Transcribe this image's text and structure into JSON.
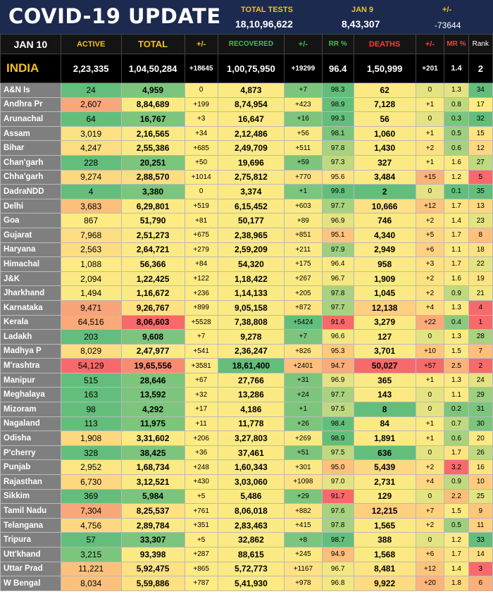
{
  "header": {
    "title": "COVID-19 UPDATE",
    "total_tests_label": "TOTAL TESTS",
    "total_tests_value": "18,10,96,622",
    "date_label": "JAN 9",
    "date_value": "8,43,307",
    "change_label": "+/-",
    "change_value": "-73644"
  },
  "columns": {
    "date": "JAN 10",
    "active": "ACTIVE",
    "total": "TOTAL",
    "pm1": "+/-",
    "recovered": "RECOVERED",
    "pm2": "+/-",
    "rr": "RR %",
    "deaths": "DEATHS",
    "pm3": "+/-",
    "mr": "MR %",
    "rank": "Rank"
  },
  "india": {
    "name": "INDIA",
    "active": "2,23,335",
    "total": "1,04,50,284",
    "pm1": "+18645",
    "recovered": "1,00,75,950",
    "pm2": "+19299",
    "rr": "96.4",
    "deaths": "1,50,999",
    "pm3": "+201",
    "mr": "1.4",
    "rank": "2"
  },
  "colors": {
    "header_bg": "#1c2a4f",
    "accent_yellow": "#f1c21b",
    "recovered_label": "#3fbf4f",
    "deaths_label": "#ff3b3b",
    "state_name_bg": "#7f7f7f"
  },
  "states": [
    {
      "name": "A&N Is",
      "active": "24",
      "total": "4,959",
      "pm1": "0",
      "recovered": "4,873",
      "pm2": "+7",
      "rr": "98.3",
      "deaths": "62",
      "pm3": "0",
      "mr": "1.3",
      "rank": "34",
      "c": [
        "#63be7b",
        "#63be7b",
        "#7cc57d",
        "#ffeb84",
        "#fbea84",
        "#7cc57d",
        "#63be7b",
        "#fbea84",
        "#e4e383",
        "#e4e383",
        "#63be7b"
      ]
    },
    {
      "name": "Andhra Pr",
      "active": "2,607",
      "total": "8,84,689",
      "pm1": "+199",
      "recovered": "8,74,954",
      "pm2": "+423",
      "rr": "98.9",
      "deaths": "7,128",
      "pm3": "+1",
      "mr": "0.8",
      "rank": "17",
      "c": [
        "#fbe983",
        "#f8a77a",
        "#fbea84",
        "#ffeb84",
        "#fbea84",
        "#fbea84",
        "#63be7b",
        "#fbea84",
        "#fbea84",
        "#bfd980",
        "#ffeb84"
      ]
    },
    {
      "name": "Arunachal",
      "active": "64",
      "total": "16,767",
      "pm1": "+3",
      "recovered": "16,647",
      "pm2": "+16",
      "rr": "99.3",
      "deaths": "56",
      "pm3": "0",
      "mr": "0.3",
      "rank": "32",
      "c": [
        "#63be7b",
        "#63be7b",
        "#7cc57d",
        "#ffeb84",
        "#fbea84",
        "#7cc57d",
        "#63be7b",
        "#fbea84",
        "#e4e383",
        "#7cc57d",
        "#63be7b"
      ]
    },
    {
      "name": "Assam",
      "active": "3,019",
      "total": "2,16,565",
      "pm1": "+34",
      "recovered": "2,12,486",
      "pm2": "+56",
      "rr": "98.1",
      "deaths": "1,060",
      "pm3": "+1",
      "mr": "0.5",
      "rank": "15",
      "c": [
        "#fbe983",
        "#fde183",
        "#fbea84",
        "#ffeb84",
        "#fbea84",
        "#fbea84",
        "#7cc57d",
        "#fbea84",
        "#fbea84",
        "#9dcf7f",
        "#fee382"
      ]
    },
    {
      "name": "Bihar",
      "active": "4,247",
      "total": "2,55,386",
      "pm1": "+685",
      "recovered": "2,49,709",
      "pm2": "+511",
      "rr": "97.8",
      "deaths": "1,430",
      "pm3": "+2",
      "mr": "0.6",
      "rank": "12",
      "c": [
        "#fbe983",
        "#fddd82",
        "#fbea84",
        "#ffeb84",
        "#fbea84",
        "#fbea84",
        "#a8d27f",
        "#fbea84",
        "#fee182",
        "#a8d27f",
        "#fed881"
      ]
    },
    {
      "name": "Chan'garh",
      "active": "228",
      "total": "20,251",
      "pm1": "+50",
      "recovered": "19,696",
      "pm2": "+59",
      "rr": "97.3",
      "deaths": "327",
      "pm3": "+1",
      "mr": "1.6",
      "rank": "27",
      "c": [
        "#63be7b",
        "#63be7b",
        "#7cc57d",
        "#ffeb84",
        "#fbea84",
        "#7cc57d",
        "#bfd980",
        "#fbea84",
        "#fbea84",
        "#fbea84",
        "#bfd980"
      ]
    },
    {
      "name": "Chha'garh",
      "active": "9,274",
      "total": "2,88,570",
      "pm1": "+1014",
      "recovered": "2,75,812",
      "pm2": "+770",
      "rr": "95.6",
      "deaths": "3,484",
      "pm3": "+15",
      "mr": "1.2",
      "rank": "5",
      "c": [
        "#fed581",
        "#fdd881",
        "#fedd82",
        "#ffeb84",
        "#fbea84",
        "#fde183",
        "#fee382",
        "#fbea84",
        "#fdb27a",
        "#fbea84",
        "#f8696b"
      ]
    },
    {
      "name": "DadraNDD",
      "active": "4",
      "total": "3,380",
      "pm1": "0",
      "recovered": "3,374",
      "pm2": "+1",
      "rr": "99.8",
      "deaths": "2",
      "pm3": "0",
      "mr": "0.1",
      "rank": "35",
      "c": [
        "#63be7b",
        "#63be7b",
        "#7cc57d",
        "#ffeb84",
        "#fbea84",
        "#7cc57d",
        "#63be7b",
        "#63be7b",
        "#e4e383",
        "#63be7b",
        "#63be7b"
      ]
    },
    {
      "name": "Delhi",
      "active": "3,683",
      "total": "6,29,801",
      "pm1": "+519",
      "recovered": "6,15,452",
      "pm2": "+603",
      "rr": "97.7",
      "deaths": "10,666",
      "pm3": "+12",
      "mr": "1.7",
      "rank": "13",
      "c": [
        "#fbe983",
        "#fcbf7b",
        "#fbea84",
        "#ffeb84",
        "#fbea84",
        "#fbea84",
        "#a8d27f",
        "#fde183",
        "#fdc47d",
        "#fee382",
        "#fed881"
      ]
    },
    {
      "name": "Goa",
      "active": "867",
      "total": "51,790",
      "pm1": "+81",
      "recovered": "50,177",
      "pm2": "+89",
      "rr": "96.9",
      "deaths": "746",
      "pm3": "+2",
      "mr": "1.4",
      "rank": "23",
      "c": [
        "#ffeb84",
        "#ffeb84",
        "#ffeb84",
        "#ffeb84",
        "#fbea84",
        "#fbea84",
        "#e4e383",
        "#fbea84",
        "#fee182",
        "#fbea84",
        "#e4e383"
      ]
    },
    {
      "name": "Gujarat",
      "active": "7,968",
      "total": "2,51,273",
      "pm1": "+675",
      "recovered": "2,38,965",
      "pm2": "+851",
      "rr": "95.1",
      "deaths": "4,340",
      "pm3": "+5",
      "mr": "1.7",
      "rank": "8",
      "c": [
        "#fedd82",
        "#fddd82",
        "#fbea84",
        "#ffeb84",
        "#fbea84",
        "#fee382",
        "#fdc47d",
        "#fbea84",
        "#fed681",
        "#fee382",
        "#fdc17c"
      ]
    },
    {
      "name": "Haryana",
      "active": "2,563",
      "total": "2,64,721",
      "pm1": "+279",
      "recovered": "2,59,209",
      "pm2": "+211",
      "rr": "97.9",
      "deaths": "2,949",
      "pm3": "+6",
      "mr": "1.1",
      "rank": "18",
      "c": [
        "#fbe983",
        "#fddd82",
        "#fbea84",
        "#ffeb84",
        "#fbea84",
        "#fbea84",
        "#9dcf7f",
        "#fbea84",
        "#fed281",
        "#fbea84",
        "#fee182"
      ]
    },
    {
      "name": "Himachal",
      "active": "1,088",
      "total": "56,366",
      "pm1": "+84",
      "recovered": "54,320",
      "pm2": "+175",
      "rr": "96.4",
      "deaths": "958",
      "pm3": "+3",
      "mr": "1.7",
      "rank": "22",
      "c": [
        "#ffeb84",
        "#ffeb84",
        "#ffeb84",
        "#ffeb84",
        "#fbea84",
        "#fbea84",
        "#fbea84",
        "#fbea84",
        "#fee182",
        "#fee382",
        "#e4e383"
      ]
    },
    {
      "name": "J&K",
      "active": "2,094",
      "total": "1,22,425",
      "pm1": "+122",
      "recovered": "1,18,422",
      "pm2": "+267",
      "rr": "96.7",
      "deaths": "1,909",
      "pm3": "+2",
      "mr": "1.6",
      "rank": "19",
      "c": [
        "#fbe983",
        "#fde983",
        "#fbea84",
        "#ffeb84",
        "#fbea84",
        "#fbea84",
        "#f2e783",
        "#fbea84",
        "#fee182",
        "#fbea84",
        "#fee382"
      ]
    },
    {
      "name": "Jharkhand",
      "active": "1,494",
      "total": "1,16,672",
      "pm1": "+236",
      "recovered": "1,14,133",
      "pm2": "+205",
      "rr": "97.8",
      "deaths": "1,045",
      "pm3": "+2",
      "mr": "0.9",
      "rank": "21",
      "c": [
        "#ffeb84",
        "#fde983",
        "#fbea84",
        "#ffeb84",
        "#fbea84",
        "#fbea84",
        "#a8d27f",
        "#fbea84",
        "#fee182",
        "#bfd980",
        "#f2e783"
      ]
    },
    {
      "name": "Karnataka",
      "active": "9,471",
      "total": "9,26,767",
      "pm1": "+899",
      "recovered": "9,05,158",
      "pm2": "+872",
      "rr": "97.7",
      "deaths": "12,138",
      "pm3": "+4",
      "mr": "1.3",
      "rank": "4",
      "c": [
        "#fed581",
        "#f8a37a",
        "#fee182",
        "#ffeb84",
        "#fbea84",
        "#fee382",
        "#a8d27f",
        "#fdcf7f",
        "#fedd82",
        "#fbea84",
        "#f8696b"
      ]
    },
    {
      "name": "Kerala",
      "active": "64,516",
      "total": "8,06,603",
      "pm1": "+5528",
      "recovered": "7,38,808",
      "pm2": "+5424",
      "rr": "91.6",
      "deaths": "3,279",
      "pm3": "+22",
      "mr": "0.4",
      "rank": "1",
      "c": [
        "#f8696b",
        "#faa97a",
        "#f8696b",
        "#ffeb84",
        "#fbea84",
        "#63be7b",
        "#f8696b",
        "#fbea84",
        "#fbaa79",
        "#8bca7e",
        "#f8696b"
      ]
    },
    {
      "name": "Ladakh",
      "active": "203",
      "total": "9,608",
      "pm1": "+7",
      "recovered": "9,278",
      "pm2": "+7",
      "rr": "96.6",
      "deaths": "127",
      "pm3": "0",
      "mr": "1.3",
      "rank": "28",
      "c": [
        "#63be7b",
        "#63be7b",
        "#7cc57d",
        "#ffeb84",
        "#fbea84",
        "#7cc57d",
        "#f2e783",
        "#fbea84",
        "#e4e383",
        "#fbea84",
        "#a8d27f"
      ]
    },
    {
      "name": "Madhya P",
      "active": "8,029",
      "total": "2,47,977",
      "pm1": "+541",
      "recovered": "2,36,247",
      "pm2": "+826",
      "rr": "95.3",
      "deaths": "3,701",
      "pm3": "+10",
      "mr": "1.5",
      "rank": "7",
      "c": [
        "#fedd82",
        "#fddd82",
        "#fbea84",
        "#ffeb84",
        "#fbea84",
        "#fee382",
        "#fdca7e",
        "#fbea84",
        "#fdc67d",
        "#fbea84",
        "#fdbf7b"
      ]
    },
    {
      "name": "M'rashtra",
      "active": "54,129",
      "total": "19,65,556",
      "pm1": "+3581",
      "recovered": "18,61,400",
      "pm2": "+2401",
      "rr": "94.7",
      "deaths": "50,027",
      "pm3": "+57",
      "mr": "2.5",
      "rank": "2",
      "c": [
        "#f8696b",
        "#f8696b",
        "#f98c70",
        "#ffeb84",
        "#63be7b",
        "#fcbf7b",
        "#fbaa79",
        "#f8696b",
        "#f8696b",
        "#fcb27a",
        "#f8696b"
      ]
    },
    {
      "name": "Manipur",
      "active": "515",
      "total": "28,646",
      "pm1": "+67",
      "recovered": "27,766",
      "pm2": "+31",
      "rr": "96.9",
      "deaths": "365",
      "pm3": "+1",
      "mr": "1.3",
      "rank": "24",
      "c": [
        "#63be7b",
        "#63be7b",
        "#7cc57d",
        "#ffeb84",
        "#fbea84",
        "#7cc57d",
        "#e4e383",
        "#fbea84",
        "#fbea84",
        "#fbea84",
        "#e4e383"
      ]
    },
    {
      "name": "Meghalaya",
      "active": "163",
      "total": "13,592",
      "pm1": "+32",
      "recovered": "13,286",
      "pm2": "+24",
      "rr": "97.7",
      "deaths": "143",
      "pm3": "0",
      "mr": "1.1",
      "rank": "29",
      "c": [
        "#63be7b",
        "#63be7b",
        "#7cc57d",
        "#ffeb84",
        "#fbea84",
        "#7cc57d",
        "#a8d27f",
        "#fbea84",
        "#e4e383",
        "#fbea84",
        "#9dcf7f"
      ]
    },
    {
      "name": "Mizoram",
      "active": "98",
      "total": "4,292",
      "pm1": "+17",
      "recovered": "4,186",
      "pm2": "+1",
      "rr": "97.5",
      "deaths": "8",
      "pm3": "0",
      "mr": "0.2",
      "rank": "31",
      "c": [
        "#63be7b",
        "#63be7b",
        "#7cc57d",
        "#ffeb84",
        "#fbea84",
        "#7cc57d",
        "#bfd980",
        "#63be7b",
        "#e4e383",
        "#7cc57d",
        "#7cc57d"
      ]
    },
    {
      "name": "Nagaland",
      "active": "113",
      "total": "11,975",
      "pm1": "+11",
      "recovered": "11,778",
      "pm2": "+26",
      "rr": "98.4",
      "deaths": "84",
      "pm3": "+1",
      "mr": "0.7",
      "rank": "30",
      "c": [
        "#63be7b",
        "#63be7b",
        "#7cc57d",
        "#ffeb84",
        "#fbea84",
        "#7cc57d",
        "#63be7b",
        "#fbea84",
        "#fbea84",
        "#bfd980",
        "#7cc57d"
      ]
    },
    {
      "name": "Odisha",
      "active": "1,908",
      "total": "3,31,602",
      "pm1": "+206",
      "recovered": "3,27,803",
      "pm2": "+269",
      "rr": "98.9",
      "deaths": "1,891",
      "pm3": "+1",
      "mr": "0.6",
      "rank": "20",
      "c": [
        "#ffeb84",
        "#fdd881",
        "#fbea84",
        "#ffeb84",
        "#fbea84",
        "#fbea84",
        "#63be7b",
        "#fbea84",
        "#fbea84",
        "#a8d27f",
        "#fbea84"
      ]
    },
    {
      "name": "P'cherry",
      "active": "328",
      "total": "38,425",
      "pm1": "+36",
      "recovered": "37,461",
      "pm2": "+51",
      "rr": "97.5",
      "deaths": "636",
      "pm3": "0",
      "mr": "1.7",
      "rank": "26",
      "c": [
        "#63be7b",
        "#63be7b",
        "#7cc57d",
        "#ffeb84",
        "#fbea84",
        "#7cc57d",
        "#bfd980",
        "#63be7b",
        "#e4e383",
        "#fee382",
        "#bfd980"
      ]
    },
    {
      "name": "Punjab",
      "active": "2,952",
      "total": "1,68,734",
      "pm1": "+248",
      "recovered": "1,60,343",
      "pm2": "+301",
      "rr": "95.0",
      "deaths": "5,439",
      "pm3": "+2",
      "mr": "3.2",
      "rank": "16",
      "c": [
        "#fbe983",
        "#fde583",
        "#fbea84",
        "#ffeb84",
        "#fbea84",
        "#fbea84",
        "#fdc17c",
        "#fdd881",
        "#fee182",
        "#f8696b",
        "#fee382"
      ]
    },
    {
      "name": "Rajasthan",
      "active": "6,730",
      "total": "3,12,521",
      "pm1": "+430",
      "recovered": "3,03,060",
      "pm2": "+1098",
      "rr": "97.0",
      "deaths": "2,731",
      "pm3": "+4",
      "mr": "0.9",
      "rank": "10",
      "c": [
        "#fedd82",
        "#fdd881",
        "#fbea84",
        "#ffeb84",
        "#fbea84",
        "#fde183",
        "#e4e383",
        "#fbea84",
        "#fed681",
        "#bfd980",
        "#fdca7e"
      ]
    },
    {
      "name": "Sikkim",
      "active": "369",
      "total": "5,984",
      "pm1": "+5",
      "recovered": "5,486",
      "pm2": "+29",
      "rr": "91.7",
      "deaths": "129",
      "pm3": "0",
      "mr": "2.2",
      "rank": "25",
      "c": [
        "#63be7b",
        "#63be7b",
        "#7cc57d",
        "#ffeb84",
        "#fbea84",
        "#7cc57d",
        "#f8696b",
        "#fbea84",
        "#e4e383",
        "#fcbe7b",
        "#e4e383"
      ]
    },
    {
      "name": "Tamil Nadu",
      "active": "7,304",
      "total": "8,25,537",
      "pm1": "+761",
      "recovered": "8,06,018",
      "pm2": "+882",
      "rr": "97.6",
      "deaths": "12,215",
      "pm3": "+7",
      "mr": "1.5",
      "rank": "9",
      "c": [
        "#fedd82",
        "#f8a77a",
        "#fee182",
        "#ffeb84",
        "#fbea84",
        "#fee382",
        "#a8d27f",
        "#fdcf7f",
        "#fdd17f",
        "#fbea84",
        "#fdc67d"
      ]
    },
    {
      "name": "Telangana",
      "active": "4,756",
      "total": "2,89,784",
      "pm1": "+351",
      "recovered": "2,83,463",
      "pm2": "+415",
      "rr": "97.8",
      "deaths": "1,565",
      "pm3": "+2",
      "mr": "0.5",
      "rank": "11",
      "c": [
        "#fbe983",
        "#fdd881",
        "#fbea84",
        "#ffeb84",
        "#fbea84",
        "#fbea84",
        "#a8d27f",
        "#fbea84",
        "#fee182",
        "#9dcf7f",
        "#fed181"
      ]
    },
    {
      "name": "Tripura",
      "active": "57",
      "total": "33,307",
      "pm1": "+5",
      "recovered": "32,862",
      "pm2": "+8",
      "rr": "98.7",
      "deaths": "388",
      "pm3": "0",
      "mr": "1.2",
      "rank": "33",
      "c": [
        "#63be7b",
        "#63be7b",
        "#7cc57d",
        "#ffeb84",
        "#fbea84",
        "#7cc57d",
        "#63be7b",
        "#fbea84",
        "#e4e383",
        "#fbea84",
        "#63be7b"
      ]
    },
    {
      "name": "Utt'khand",
      "active": "3,215",
      "total": "93,398",
      "pm1": "+287",
      "recovered": "88,615",
      "pm2": "+245",
      "rr": "94.9",
      "deaths": "1,568",
      "pm3": "+6",
      "mr": "1.7",
      "rank": "14",
      "c": [
        "#fbe983",
        "#7cc57d",
        "#fbea84",
        "#ffeb84",
        "#fbea84",
        "#fbea84",
        "#fcbe7b",
        "#fbea84",
        "#fed281",
        "#fee382",
        "#fedd82"
      ]
    },
    {
      "name": "Uttar Prad",
      "active": "11,221",
      "total": "5,92,475",
      "pm1": "+865",
      "recovered": "5,72,773",
      "pm2": "+1167",
      "rr": "96.7",
      "deaths": "8,481",
      "pm3": "+12",
      "mr": "1.4",
      "rank": "3",
      "c": [
        "#fdd17f",
        "#fbc17c",
        "#fee182",
        "#ffeb84",
        "#fbea84",
        "#fde183",
        "#f2e783",
        "#fde583",
        "#fdc47d",
        "#fbea84",
        "#f8696b"
      ]
    },
    {
      "name": "W Bengal",
      "active": "8,034",
      "total": "5,59,886",
      "pm1": "+787",
      "recovered": "5,41,930",
      "pm2": "+978",
      "rr": "96.8",
      "deaths": "9,922",
      "pm3": "+20",
      "mr": "1.8",
      "rank": "6",
      "c": [
        "#fedd82",
        "#fbc17c",
        "#fee182",
        "#ffeb84",
        "#fbea84",
        "#fee382",
        "#f2e783",
        "#fddb82",
        "#fcb47a",
        "#fdd881",
        "#fbaf79"
      ]
    }
  ]
}
